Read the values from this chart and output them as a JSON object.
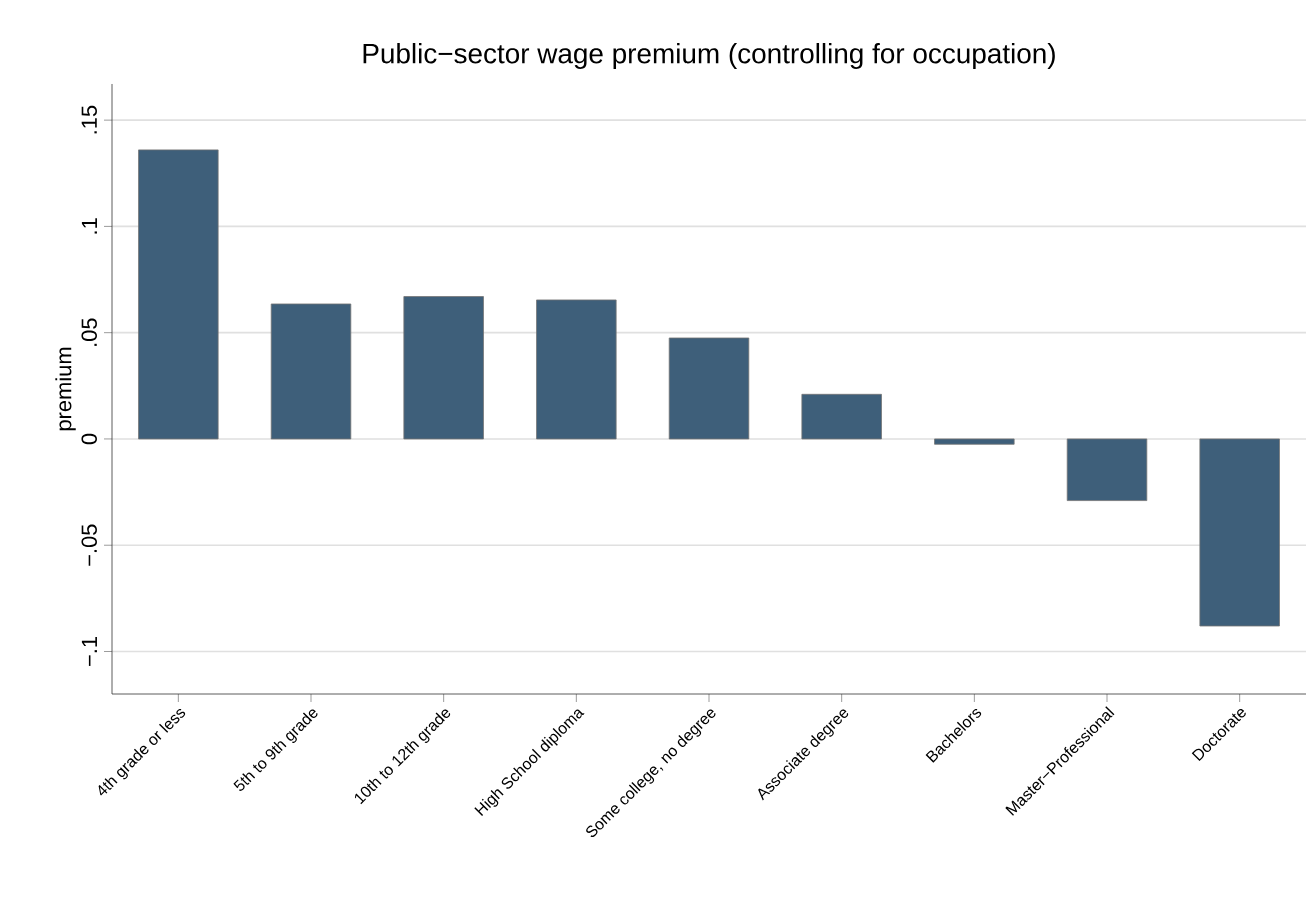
{
  "chart_data": {
    "type": "bar",
    "title": "Public−sector wage premium (controlling for occupation)",
    "ylabel": "premium",
    "categories": [
      "4th grade or less",
      "5th to 9th grade",
      "10th to 12th grade",
      "High School diploma",
      "Some college, no degree",
      "Associate degree",
      "Bachelors",
      "Master−Professional",
      "Doctorate"
    ],
    "values": [
      0.136,
      0.0635,
      0.067,
      0.0654,
      0.0475,
      0.021,
      -0.0025,
      -0.029,
      -0.088
    ],
    "color": "#3e5f7a",
    "ylim": [
      -0.12,
      0.167
    ],
    "yticks": [
      {
        "value": -0.1,
        "label": "−.1"
      },
      {
        "value": -0.05,
        "label": "−.05"
      },
      {
        "value": 0,
        "label": "0"
      },
      {
        "value": 0.05,
        "label": ".05"
      },
      {
        "value": 0.1,
        "label": ".1"
      },
      {
        "value": 0.15,
        "label": ".15"
      }
    ],
    "grid": "y"
  }
}
